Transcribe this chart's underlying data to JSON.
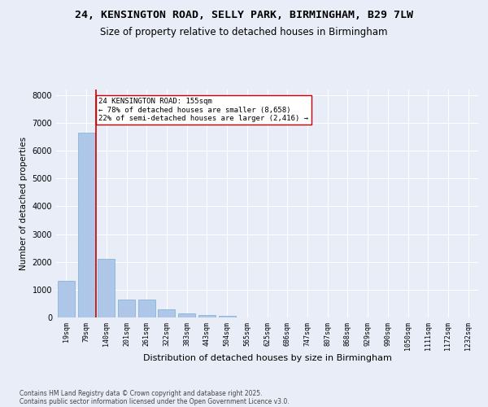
{
  "title_line1": "24, KENSINGTON ROAD, SELLY PARK, BIRMINGHAM, B29 7LW",
  "title_line2": "Size of property relative to detached houses in Birmingham",
  "xlabel": "Distribution of detached houses by size in Birmingham",
  "ylabel": "Number of detached properties",
  "categories": [
    "19sqm",
    "79sqm",
    "140sqm",
    "201sqm",
    "261sqm",
    "322sqm",
    "383sqm",
    "443sqm",
    "504sqm",
    "565sqm",
    "625sqm",
    "686sqm",
    "747sqm",
    "807sqm",
    "868sqm",
    "929sqm",
    "990sqm",
    "1050sqm",
    "1111sqm",
    "1172sqm",
    "1232sqm"
  ],
  "values": [
    1310,
    6650,
    2100,
    650,
    650,
    280,
    140,
    100,
    55,
    0,
    0,
    0,
    0,
    0,
    0,
    0,
    0,
    0,
    0,
    0,
    0
  ],
  "bar_color": "#aec6e8",
  "bar_edge_color": "#7aadd4",
  "vline_x_index": 2,
  "vline_color": "#cc0000",
  "annotation_text": "24 KENSINGTON ROAD: 155sqm\n← 78% of detached houses are smaller (8,658)\n22% of semi-detached houses are larger (2,416) →",
  "annotation_box_color": "#ffffff",
  "annotation_box_edge": "#cc0000",
  "ylim": [
    0,
    8200
  ],
  "yticks": [
    0,
    1000,
    2000,
    3000,
    4000,
    5000,
    6000,
    7000,
    8000
  ],
  "bg_color": "#e8edf8",
  "plot_bg_color": "#e8edf8",
  "grid_color": "#ffffff",
  "footer_line1": "Contains HM Land Registry data © Crown copyright and database right 2025.",
  "footer_line2": "Contains public sector information licensed under the Open Government Licence v3.0.",
  "title_fontsize": 9.5,
  "subtitle_fontsize": 8.5,
  "tick_fontsize": 6,
  "label_fontsize": 8,
  "ylabel_fontsize": 7.5,
  "footer_fontsize": 5.5
}
